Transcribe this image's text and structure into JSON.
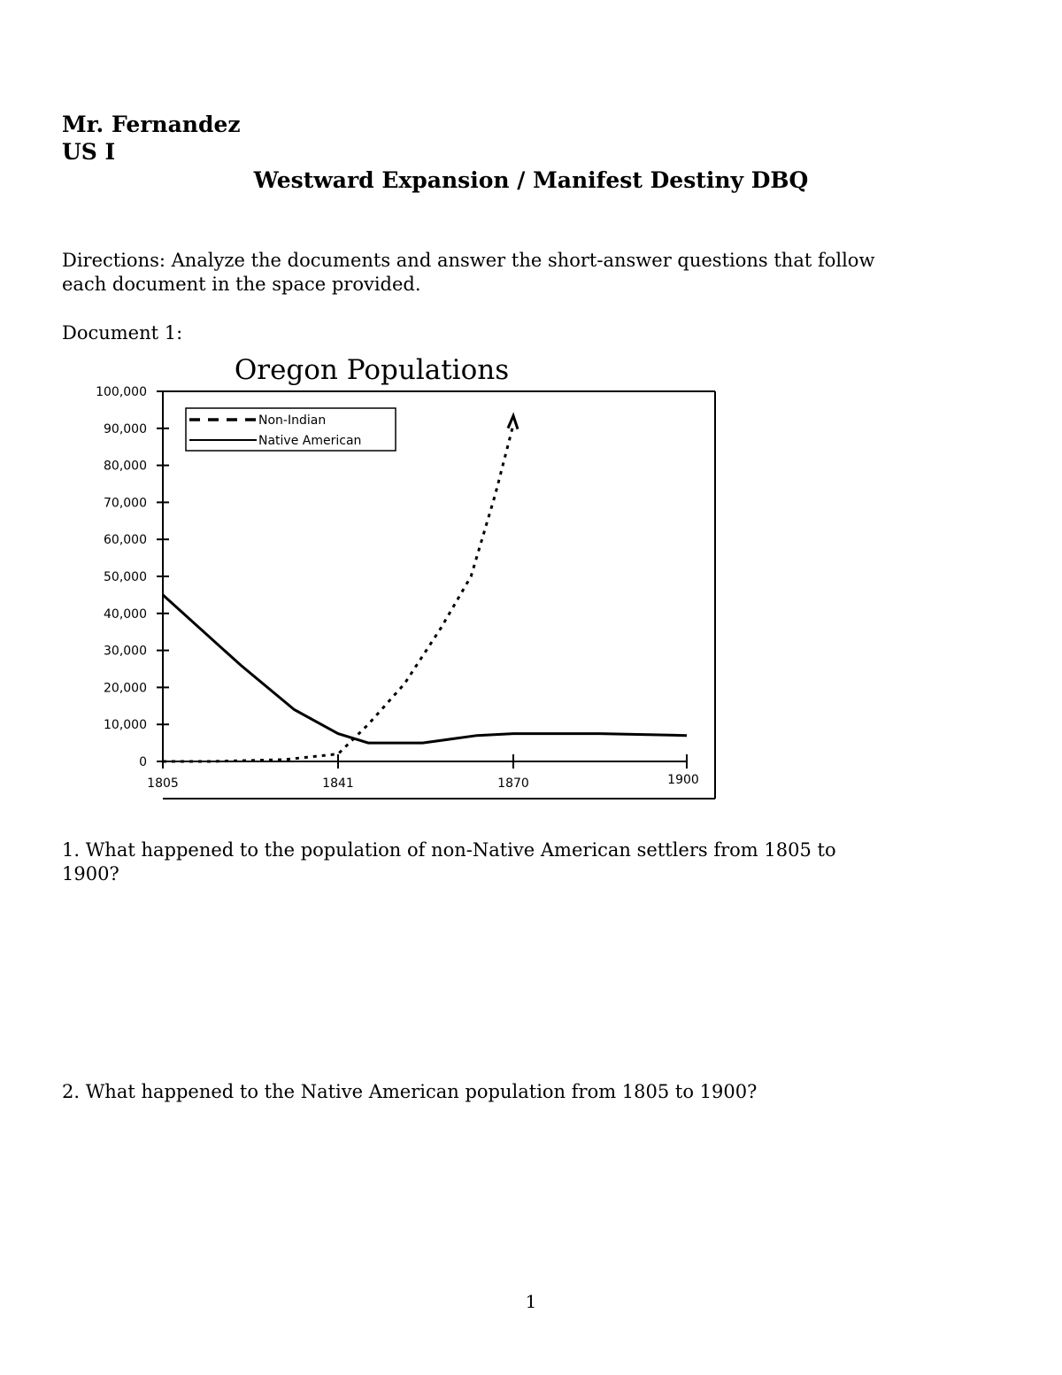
{
  "header": {
    "teacher": "Mr. Fernandez",
    "course": "US I",
    "title": "Westward Expansion / Manifest Destiny DBQ"
  },
  "directions": {
    "line1": "Directions:  Analyze the documents and answer the short-answer questions that follow",
    "line2": "each document in the space provided."
  },
  "document_label": "Document 1:",
  "chart_data": {
    "type": "line",
    "title": "Oregon Populations",
    "xlabel": "",
    "ylabel": "",
    "x_ticks": [
      "1805",
      "1841",
      "1870",
      "1900"
    ],
    "y_ticks": [
      "0",
      "10,000",
      "20,000",
      "30,000",
      "40,000",
      "50,000",
      "60,000",
      "70,000",
      "80,000",
      "90,000",
      "100,000"
    ],
    "ylim": [
      0,
      100000
    ],
    "grid": false,
    "legend_placement": "top-left",
    "series": [
      {
        "name": "Non-Indian",
        "style": "dashed",
        "arrow_at_end": true,
        "points": [
          [
            1805,
            0
          ],
          [
            1815,
            0
          ],
          [
            1830,
            500
          ],
          [
            1841,
            2000
          ],
          [
            1846,
            10000
          ],
          [
            1852,
            21000
          ],
          [
            1858,
            36000
          ],
          [
            1863,
            50000
          ],
          [
            1867,
            72000
          ],
          [
            1870,
            91000
          ]
        ]
      },
      {
        "name": "Native American",
        "style": "solid",
        "points": [
          [
            1805,
            45000
          ],
          [
            1821,
            26000
          ],
          [
            1832,
            14000
          ],
          [
            1841,
            7500
          ],
          [
            1846,
            5000
          ],
          [
            1855,
            5000
          ],
          [
            1864,
            7000
          ],
          [
            1870,
            7500
          ],
          [
            1885,
            7500
          ],
          [
            1900,
            7000
          ]
        ]
      }
    ]
  },
  "questions": [
    {
      "line1": "1.  What happened to the population of non-Native American settlers from 1805 to",
      "line2": "1900?"
    },
    {
      "line1": "2.  What happened to the Native American population from 1805 to 1900?"
    }
  ],
  "page_number": "1"
}
